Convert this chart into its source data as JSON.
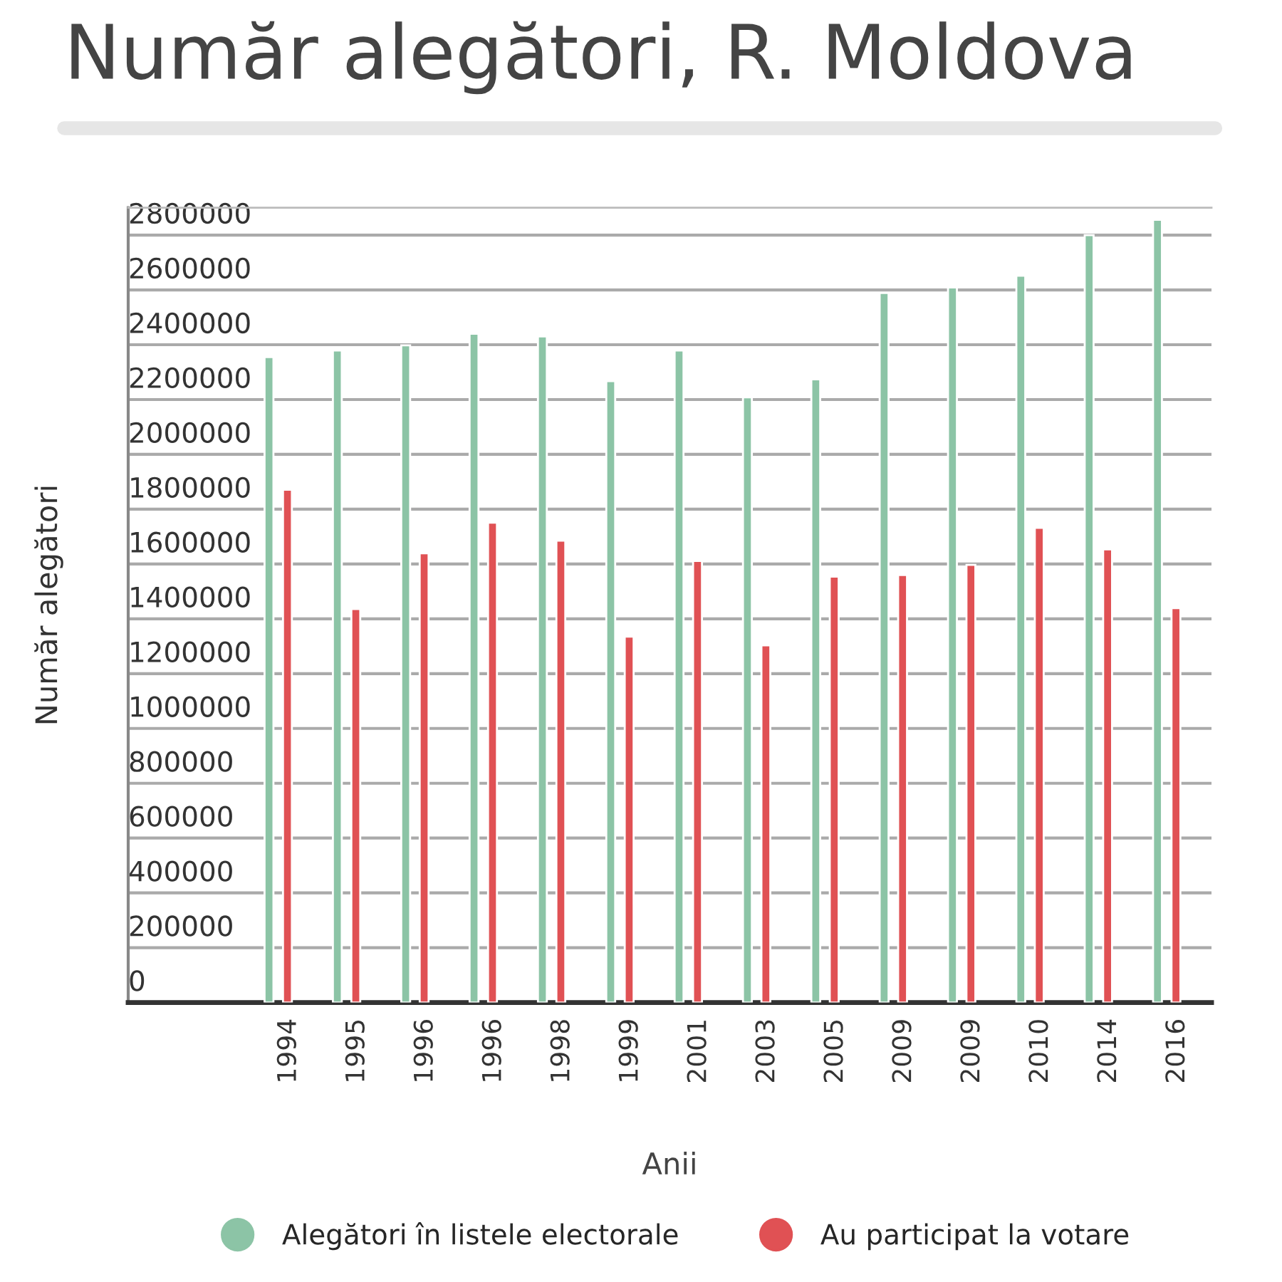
{
  "chart_data": {
    "type": "bar",
    "title": "Număr alegători, R. Moldova",
    "xlabel": "Anii",
    "ylabel": "Număr alegători",
    "categories": [
      "1994",
      "1995",
      "1996",
      "1996",
      "1998",
      "1999",
      "2001",
      "2003",
      "2005",
      "2009",
      "2009",
      "2010",
      "2014",
      "2016"
    ],
    "series": [
      {
        "name": "Alegători în listele electorale",
        "color": "#8cc4a6",
        "values": [
          2355000,
          2379000,
          2398000,
          2440000,
          2430000,
          2267000,
          2379000,
          2208000,
          2274000,
          2589000,
          2609000,
          2652000,
          2800000,
          2856000
        ]
      },
      {
        "name": "Au participat la votare",
        "color": "#e05154",
        "values": [
          1871000,
          1436000,
          1639000,
          1751000,
          1685000,
          1335000,
          1611000,
          1303000,
          1554000,
          1560000,
          1597000,
          1732000,
          1653000,
          1439000
        ]
      }
    ],
    "ylim": [
      0,
      2900000
    ],
    "yticks": [
      0,
      200000,
      400000,
      600000,
      800000,
      1000000,
      1200000,
      1400000,
      1600000,
      1800000,
      2000000,
      2200000,
      2400000,
      2600000,
      2800000
    ],
    "grid": "y",
    "legend": "bottom"
  }
}
